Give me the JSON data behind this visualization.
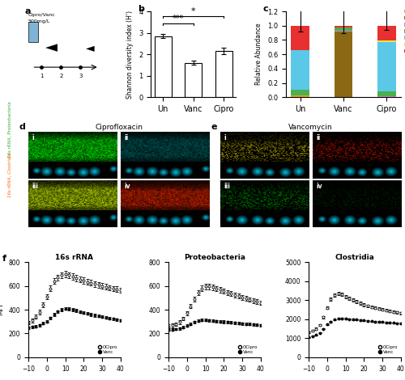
{
  "panel_b": {
    "categories": [
      "Un",
      "Vanc",
      "Cipro"
    ],
    "means": [
      2.85,
      1.6,
      2.15
    ],
    "errors": [
      0.1,
      0.1,
      0.15
    ],
    "ylabel": "Shannon diversity index (H')",
    "ylim": [
      0,
      4
    ],
    "yticks": [
      0,
      1,
      2,
      3,
      4
    ]
  },
  "panel_c": {
    "categories": [
      "Un",
      "Vanc",
      "Cipro"
    ],
    "stacks": {
      "Bacili": [
        0.02,
        0.0,
        0.0
      ],
      "Deferribacteres": [
        0.0,
        0.92,
        0.0
      ],
      "Erysipelotrichia": [
        0.01,
        0.01,
        0.01
      ],
      "Gammaproteobacteria": [
        0.08,
        0.04,
        0.07
      ],
      "Bacteroidia": [
        0.55,
        0.0,
        0.69
      ],
      "Betaproteobacteria": [
        0.0,
        0.0,
        0.02
      ],
      "Clostridia": [
        0.34,
        0.03,
        0.21
      ]
    },
    "err_lo": [
      0.08,
      0.1,
      0.06
    ],
    "err_hi": [
      0.35,
      0.65,
      0.3
    ],
    "colors": {
      "Bacili": "#E8A020",
      "Deferribacteres": "#8B6914",
      "Erysipelotrichia": "#CC88CC",
      "Gammaproteobacteria": "#4CAF50",
      "Bacteroidia": "#5BC8E8",
      "Betaproteobacteria": "#E8E840",
      "Clostridia": "#E83030"
    },
    "ylabel": "Relative Abundance",
    "ylim": [
      0,
      1.2
    ],
    "yticks": [
      0.0,
      0.2,
      0.4,
      0.6,
      0.8,
      1.0,
      1.2
    ]
  },
  "panel_f": {
    "x": [
      -10,
      -8,
      -6,
      -4,
      -2,
      0,
      2,
      4,
      6,
      8,
      10,
      12,
      14,
      16,
      18,
      20,
      22,
      24,
      26,
      28,
      30,
      32,
      34,
      36,
      38,
      40
    ],
    "rna_cipro": [
      290,
      310,
      340,
      380,
      440,
      510,
      580,
      640,
      670,
      690,
      700,
      690,
      680,
      665,
      655,
      645,
      635,
      625,
      615,
      608,
      600,
      592,
      585,
      578,
      572,
      565
    ],
    "rna_vanc": [
      250,
      255,
      260,
      270,
      285,
      300,
      330,
      360,
      385,
      400,
      410,
      408,
      400,
      392,
      382,
      375,
      368,
      360,
      353,
      347,
      340,
      335,
      328,
      322,
      316,
      310
    ],
    "prot_cipro": [
      260,
      268,
      278,
      295,
      325,
      370,
      430,
      490,
      545,
      580,
      595,
      595,
      588,
      578,
      568,
      555,
      545,
      535,
      525,
      515,
      505,
      495,
      485,
      476,
      467,
      458
    ],
    "prot_vanc": [
      230,
      233,
      237,
      243,
      252,
      265,
      280,
      295,
      308,
      315,
      313,
      310,
      307,
      304,
      301,
      298,
      295,
      292,
      289,
      287,
      284,
      281,
      278,
      276,
      273,
      270
    ],
    "clos_cipro": [
      1300,
      1380,
      1500,
      1700,
      2100,
      2600,
      3050,
      3250,
      3350,
      3300,
      3200,
      3100,
      3000,
      2920,
      2840,
      2760,
      2700,
      2650,
      2600,
      2555,
      2510,
      2470,
      2430,
      2390,
      2355,
      2320
    ],
    "clos_vanc": [
      1050,
      1100,
      1170,
      1280,
      1500,
      1720,
      1870,
      1970,
      2020,
      2040,
      2030,
      2010,
      1990,
      1970,
      1950,
      1930,
      1910,
      1890,
      1875,
      1860,
      1845,
      1830,
      1815,
      1800,
      1790,
      1780
    ],
    "rna_ylim": [
      0,
      800
    ],
    "rna_yticks": [
      0,
      200,
      400,
      600,
      800
    ],
    "prot_ylim": [
      0,
      800
    ],
    "prot_yticks": [
      0,
      200,
      400,
      600,
      800
    ],
    "clos_ylim": [
      0,
      5000
    ],
    "clos_yticks": [
      0,
      1000,
      2000,
      3000,
      4000,
      5000
    ],
    "xlim": [
      -10,
      40
    ],
    "xticks": [
      -10,
      0,
      10,
      20,
      30,
      40
    ],
    "mfi_label": "MFI",
    "titles": [
      "16s rRNA",
      "Proteobacteria",
      "Clostridia"
    ]
  },
  "bg_color": "#ffffff"
}
